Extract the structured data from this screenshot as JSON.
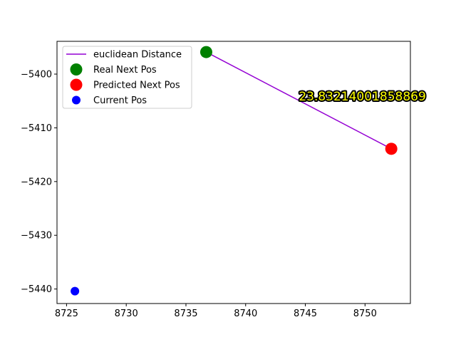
{
  "chart_data": {
    "type": "scatter",
    "title": "",
    "xlabel": "",
    "ylabel": "",
    "xlim": [
      8724.2,
      8753.8
    ],
    "ylim": [
      -5442.7,
      -5393.9
    ],
    "x_ticks": [
      8725,
      8730,
      8735,
      8740,
      8745,
      8750
    ],
    "x_tick_labels": [
      "8725",
      "8730",
      "8735",
      "8740",
      "8745",
      "8750"
    ],
    "y_ticks": [
      -5400,
      -5410,
      -5420,
      -5430,
      -5440
    ],
    "y_tick_labels": [
      "−5400",
      "−5410",
      "−5420",
      "−5430",
      "−5440"
    ],
    "grid": false,
    "legend_position": "top-left",
    "series": [
      {
        "name": "euclidean Distance",
        "kind": "line",
        "color": "#9400d3",
        "points": [
          [
            8736.7,
            -5395.9
          ],
          [
            8752.2,
            -5413.9
          ]
        ]
      },
      {
        "name": "Real Next Pos",
        "kind": "marker",
        "size": "large",
        "color": "#008000",
        "points": [
          [
            8736.7,
            -5395.9
          ]
        ]
      },
      {
        "name": "Predicted Next Pos",
        "kind": "marker",
        "size": "large",
        "color": "#ff0000",
        "points": [
          [
            8752.2,
            -5413.9
          ]
        ]
      },
      {
        "name": "Current Pos",
        "kind": "marker",
        "size": "small",
        "color": "#0000ff",
        "points": [
          [
            8725.7,
            -5440.4
          ]
        ]
      }
    ],
    "annotations": [
      {
        "text": "23.83214001858869",
        "x": 8744.45,
        "y": -5404.9,
        "color": "#ffff00"
      }
    ]
  }
}
